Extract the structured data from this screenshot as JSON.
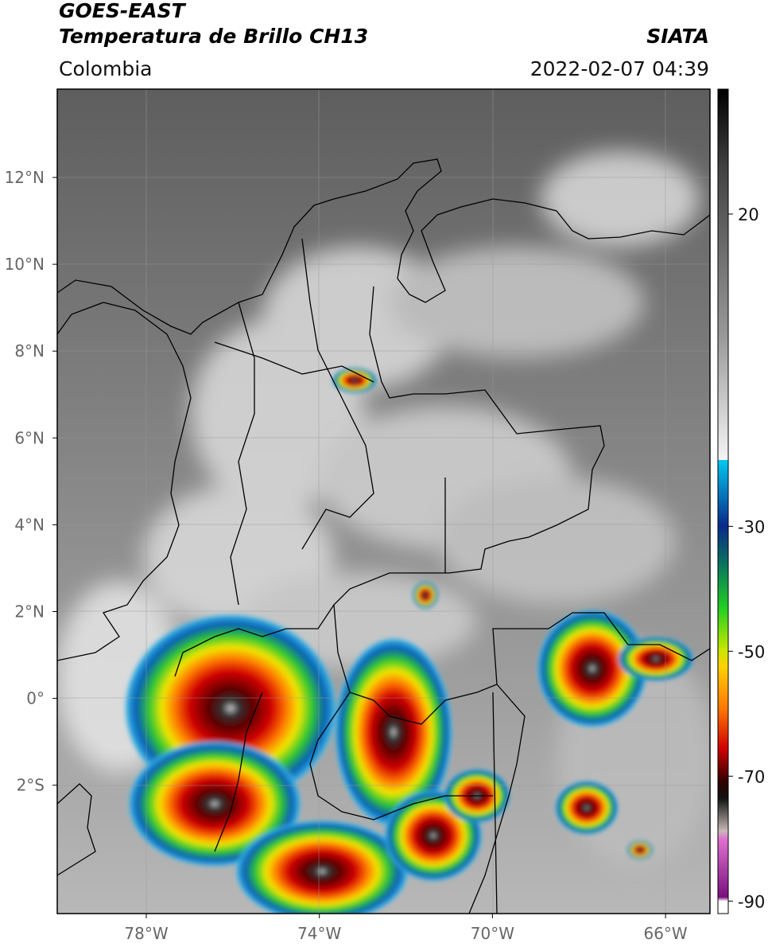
{
  "header": {
    "satellite": "GOES-EAST",
    "product": "Temperatura de Brillo CH13",
    "region": "Colombia",
    "source": "SIATA",
    "datetime": "2022-02-07 04:39"
  },
  "map": {
    "lat_ticks": [
      "12°N",
      "10°N",
      "8°N",
      "6°N",
      "4°N",
      "2°N",
      "0°",
      "2°S"
    ],
    "lon_ticks": [
      "78°W",
      "74°W",
      "70°W",
      "66°W"
    ]
  },
  "colorbar": {
    "lim": [
      -92,
      40
    ],
    "ticks": [
      20,
      -30,
      -50,
      -70,
      -90
    ]
  }
}
